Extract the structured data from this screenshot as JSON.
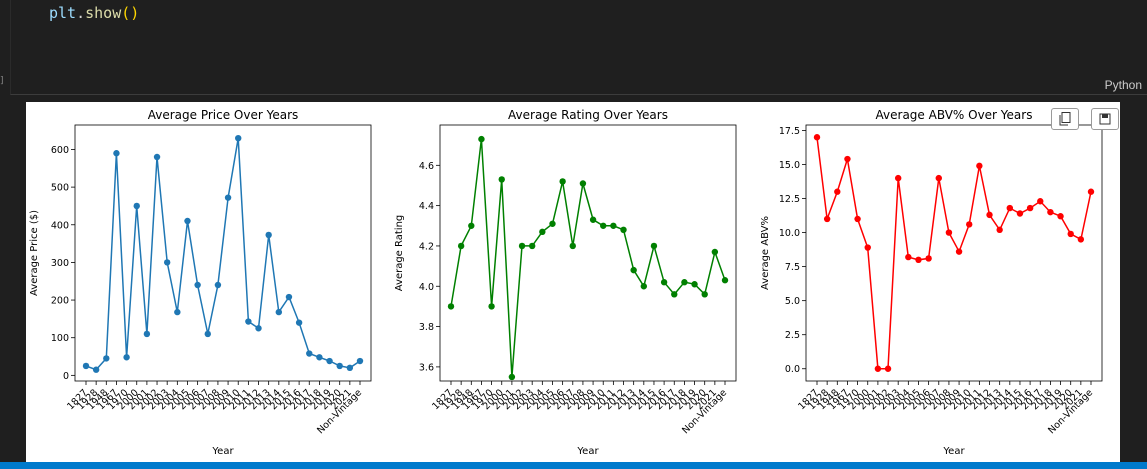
{
  "code": {
    "var": "plt",
    "dot": ".",
    "fn": "show",
    "parens": "()"
  },
  "cell": {
    "language": "Python"
  },
  "toolbar": {
    "copy_icon": "copy-icon",
    "save_icon": "save-icon"
  },
  "categories": [
    "1827",
    "1928",
    "1948",
    "1967",
    "1970",
    "2000",
    "2001",
    "2002",
    "2003",
    "2004",
    "2005",
    "2006",
    "2007",
    "2008",
    "2009",
    "2010",
    "2011",
    "2012",
    "2013",
    "2014",
    "2015",
    "2016",
    "2017",
    "2018",
    "2019",
    "2020",
    "2021",
    "Non-Vintage"
  ],
  "chart_data": [
    {
      "type": "line",
      "title": "Average Price Over Years",
      "xlabel": "Year",
      "ylabel": "Average Price ($)",
      "ylim": [
        -15,
        665
      ],
      "yticks": [
        0,
        100,
        200,
        300,
        400,
        500,
        600
      ],
      "color": "#1f77b4",
      "series": [
        {
          "values": [
            25,
            15,
            45,
            590,
            48,
            450,
            110,
            580,
            300,
            168,
            410,
            240,
            110,
            240,
            472,
            630,
            143,
            125,
            373,
            168,
            208,
            140,
            58,
            48,
            38,
            25,
            20,
            38
          ]
        }
      ]
    },
    {
      "type": "line",
      "title": "Average Rating Over Years",
      "xlabel": "Year",
      "ylabel": "Average Rating",
      "ylim": [
        3.53,
        4.8
      ],
      "yticks": [
        3.6,
        3.8,
        4.0,
        4.2,
        4.4,
        4.6
      ],
      "color": "#008000",
      "series": [
        {
          "values": [
            3.9,
            4.2,
            4.3,
            4.73,
            3.9,
            4.53,
            3.55,
            4.2,
            4.2,
            4.27,
            4.31,
            4.52,
            4.2,
            4.51,
            4.33,
            4.3,
            4.3,
            4.28,
            4.08,
            4.0,
            4.2,
            4.02,
            3.96,
            4.02,
            4.01,
            3.96,
            4.17,
            4.03
          ]
        }
      ]
    },
    {
      "type": "line",
      "title": "Average ABV% Over Years",
      "xlabel": "Year",
      "ylabel": "Average ABV%",
      "ylim": [
        -0.9,
        17.9
      ],
      "yticks": [
        0.0,
        2.5,
        5.0,
        7.5,
        10.0,
        12.5,
        15.0,
        17.5
      ],
      "color": "#ff0000",
      "series": [
        {
          "values": [
            17.0,
            11.0,
            13.0,
            15.4,
            11.0,
            8.9,
            0.0,
            0.0,
            14.0,
            8.2,
            8.0,
            8.1,
            14.0,
            10.0,
            8.6,
            10.6,
            14.9,
            11.3,
            10.2,
            11.8,
            11.4,
            11.8,
            12.3,
            11.5,
            11.2,
            9.9,
            9.5,
            13.0
          ]
        }
      ]
    }
  ]
}
